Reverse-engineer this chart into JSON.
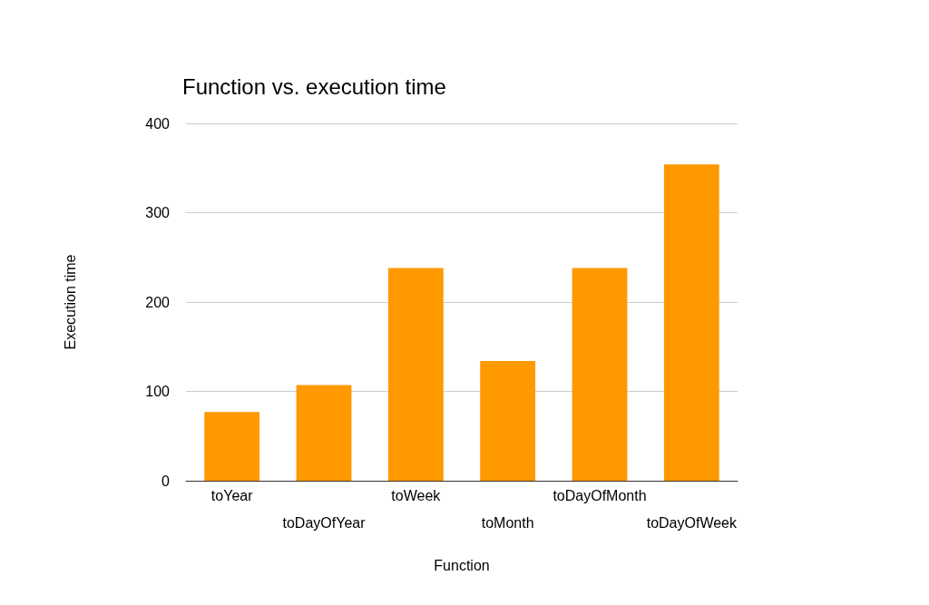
{
  "chart_data": {
    "type": "bar",
    "title": "Function vs. execution time",
    "xlabel": "Function",
    "ylabel": "Execution time",
    "categories": [
      "toYear",
      "toDayOfYear",
      "toWeek",
      "toMonth",
      "toDayOfMonth",
      "toDayOfWeek"
    ],
    "values": [
      77,
      107,
      238,
      134,
      238,
      354
    ],
    "color": "#ff9900",
    "ylim": [
      0,
      400
    ],
    "yticks": [
      0,
      100,
      200,
      300,
      400
    ],
    "grid": "y"
  }
}
